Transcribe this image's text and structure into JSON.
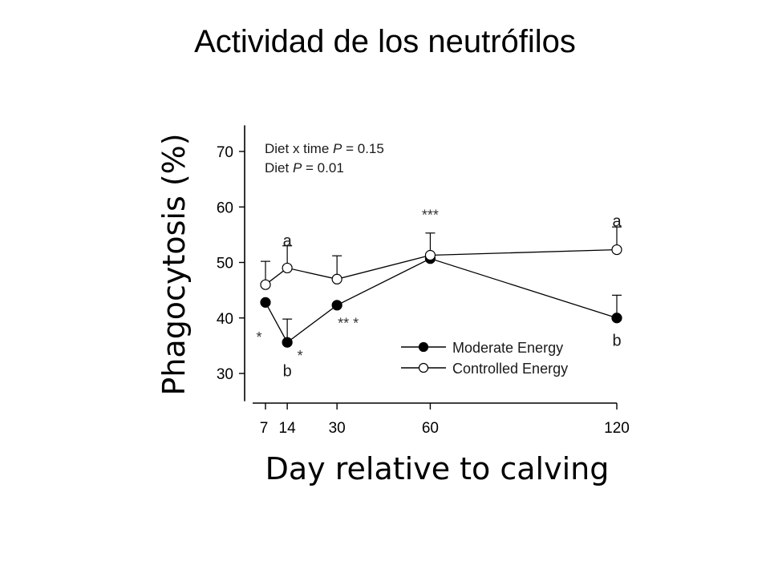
{
  "slide_title": "Actividad de los neutrófilos",
  "chart_data": {
    "type": "line",
    "xlabel": "Day relative to calving",
    "ylabel": "Phagocytosis (%)",
    "x": [
      7,
      14,
      30,
      60,
      120
    ],
    "x_tick_labels": [
      "7",
      "14",
      "30",
      "60",
      "120"
    ],
    "ylim": [
      25,
      75
    ],
    "y_ticks": [
      30,
      40,
      50,
      60,
      70
    ],
    "y_tick_labels": [
      "30",
      "40",
      "50",
      "60",
      "70"
    ],
    "grid": false,
    "legend_position": "bottom-right",
    "series": [
      {
        "name": "Moderate Energy",
        "marker": "filled-circle",
        "color": "#000000",
        "values": [
          42.8,
          35.6,
          42.3,
          50.7,
          40.0
        ],
        "error_upper": [
          null,
          39.8,
          null,
          null,
          44.1
        ]
      },
      {
        "name": "Controlled Energy",
        "marker": "open-circle",
        "color": "#000000",
        "values": [
          46.0,
          49.0,
          47.0,
          51.3,
          52.3
        ],
        "error_upper": [
          50.2,
          53.0,
          51.2,
          55.3,
          56.4
        ]
      }
    ],
    "annotations": {
      "stats_line1_prefix": "Diet x time ",
      "stats_line1_p": "P",
      "stats_line1_suffix": " = 0.15",
      "stats_line2_prefix": "Diet ",
      "stats_line2_p": "P",
      "stats_line2_suffix": " = 0.01",
      "significance": [
        {
          "text": "*",
          "day": 7,
          "level": 36.5
        },
        {
          "text": "*",
          "day": 14,
          "level": 33.2
        },
        {
          "text": "** *",
          "day": 30,
          "level": 39.0
        },
        {
          "text": "***",
          "day": 60,
          "level": 58.5
        }
      ],
      "letters": [
        {
          "text": "a",
          "day": 14,
          "level": 54.0
        },
        {
          "text": "b",
          "day": 14,
          "level": 30.5
        },
        {
          "text": "a",
          "day": 120,
          "level": 57.5
        },
        {
          "text": "b",
          "day": 120,
          "level": 36.0
        }
      ]
    }
  }
}
